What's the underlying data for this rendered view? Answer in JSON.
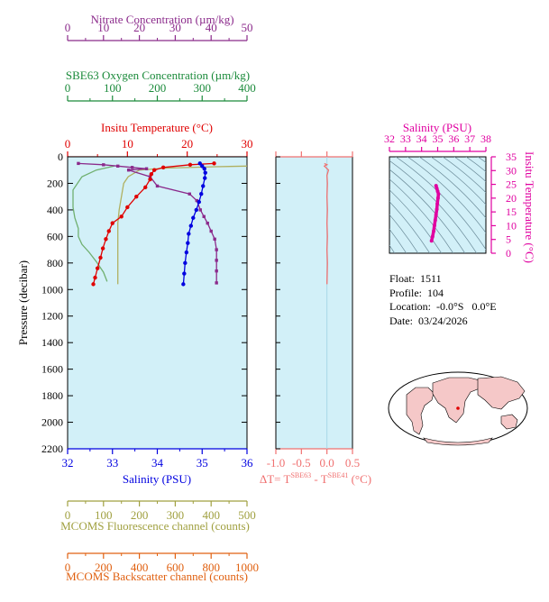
{
  "colors": {
    "bg": "#d2f0f8",
    "temp": "#e00000",
    "sal": "#0000e0",
    "nitrate": "#8b2a8b",
    "oxygen": "#1a8a3a",
    "fluor": "#a0a040",
    "backscatter": "#e06010",
    "dt": "#f07070",
    "ts": "#e000a0"
  },
  "float_info": {
    "float_label": "Float:",
    "float": "1511",
    "profile_label": "Profile:",
    "profile": "104",
    "location_label": "Location:",
    "lat": "-0.0°S",
    "lon": "0.0°E",
    "date_label": "Date:",
    "date": "03/24/2026"
  },
  "chart_data": [
    {
      "type": "line",
      "name": "main-profile",
      "ylabel": "Pressure (decibar)",
      "ylim": [
        2200,
        0
      ],
      "yticks": [
        0,
        200,
        400,
        600,
        800,
        1000,
        1200,
        1400,
        1600,
        1800,
        2000,
        2200
      ],
      "grid": false,
      "axes": {
        "nitrate": {
          "title": "Nitrate Concentration (µm/kg)",
          "range": [
            0,
            50
          ],
          "ticks": [
            0,
            10,
            20,
            30,
            40,
            50
          ]
        },
        "oxygen": {
          "title": "SBE63 Oxygen Concentration (µm/kg)",
          "range": [
            0,
            400
          ],
          "ticks": [
            0,
            100,
            200,
            300,
            400
          ]
        },
        "temperature": {
          "title": "Insitu Temperature (°C)",
          "range": [
            0,
            30
          ],
          "ticks": [
            0,
            10,
            20,
            30
          ]
        },
        "salinity": {
          "title": "Salinity (PSU)",
          "range": [
            32,
            36
          ],
          "ticks": [
            32,
            33,
            34,
            35,
            36
          ]
        },
        "fluorescence": {
          "title": "MCOMS Fluorescence channel (counts)",
          "range": [
            0,
            500
          ],
          "ticks": [
            0,
            100,
            200,
            300,
            400,
            500
          ]
        },
        "backscatter": {
          "title": "MCOMS Backscatter channel (counts)",
          "range": [
            0,
            1000
          ],
          "ticks": [
            0,
            200,
            400,
            600,
            800,
            1000
          ]
        }
      },
      "series": {
        "temperature": {
          "points": [
            [
              24.5,
              50
            ],
            [
              20.5,
              60
            ],
            [
              16,
              80
            ],
            [
              14.5,
              100
            ],
            [
              14,
              130
            ],
            [
              13.8,
              170
            ],
            [
              13,
              230
            ],
            [
              11.5,
              300
            ],
            [
              10,
              380
            ],
            [
              9,
              450
            ],
            [
              7.5,
              500
            ],
            [
              6.9,
              560
            ],
            [
              6.4,
              620
            ],
            [
              5.9,
              690
            ],
            [
              5.5,
              760
            ],
            [
              5,
              840
            ],
            [
              4.6,
              910
            ],
            [
              4.3,
              960
            ]
          ]
        },
        "salinity": {
          "points": [
            [
              34.95,
              50
            ],
            [
              35.0,
              70
            ],
            [
              35.05,
              90
            ],
            [
              35.07,
              120
            ],
            [
              35.06,
              160
            ],
            [
              35.02,
              220
            ],
            [
              34.98,
              280
            ],
            [
              34.93,
              340
            ],
            [
              34.87,
              400
            ],
            [
              34.8,
              460
            ],
            [
              34.75,
              520
            ],
            [
              34.7,
              580
            ],
            [
              34.68,
              650
            ],
            [
              34.65,
              720
            ],
            [
              34.62,
              800
            ],
            [
              34.6,
              880
            ],
            [
              34.58,
              960
            ]
          ]
        },
        "nitrate": {
          "points": [
            [
              3,
              50
            ],
            [
              10,
              60
            ],
            [
              14,
              70
            ],
            [
              18,
              80
            ],
            [
              22,
              90
            ],
            [
              17,
              100
            ],
            [
              23,
              150
            ],
            [
              25,
              220
            ],
            [
              34,
              280
            ],
            [
              36,
              330
            ],
            [
              37,
              400
            ],
            [
              38,
              450
            ],
            [
              39,
              500
            ],
            [
              40,
              560
            ],
            [
              41,
              620
            ],
            [
              41.5,
              700
            ],
            [
              41.5,
              780
            ],
            [
              41.5,
              860
            ],
            [
              41.5,
              950
            ]
          ]
        },
        "oxygen": {
          "points": [
            [
              400,
              70
            ],
            [
              330,
              75
            ],
            [
              220,
              85
            ],
            [
              160,
              100
            ],
            [
              135,
              150
            ],
            [
              125,
              200
            ],
            [
              120,
              300
            ],
            [
              115,
              400
            ],
            [
              112,
              500
            ],
            [
              112,
              600
            ],
            [
              112,
              700
            ],
            [
              112,
              800
            ],
            [
              112,
              900
            ],
            [
              112,
              960
            ]
          ]
        },
        "fluorescence": {
          "points": [
            [
              130,
              70
            ],
            [
              80,
              100
            ],
            [
              40,
              150
            ],
            [
              15,
              250
            ],
            [
              15,
              380
            ],
            [
              20,
              460
            ],
            [
              30,
              540
            ],
            [
              30,
              600
            ],
            [
              40,
              660
            ],
            [
              60,
              720
            ],
            [
              80,
              790
            ],
            [
              100,
              870
            ],
            [
              110,
              940
            ]
          ]
        }
      }
    },
    {
      "type": "line",
      "name": "delta-t",
      "xlabel": "ΔT= T",
      "xlabel_sup1": "SBE63",
      "xlabel_mid": " - T",
      "xlabel_sup2": "SBE41",
      "xlabel_tail": " (°C)",
      "xlim": [
        -1.0,
        0.5
      ],
      "xticks": [
        "-1.0",
        "-0.5",
        "0.0",
        "0.5"
      ],
      "ylim": [
        2200,
        0
      ],
      "series": [
        {
          "points": [
            [
              -0.05,
              50
            ],
            [
              0.0,
              60
            ],
            [
              -0.05,
              70
            ],
            [
              0.03,
              100
            ],
            [
              0.0,
              140
            ],
            [
              0.01,
              200
            ],
            [
              0.0,
              300
            ],
            [
              0.01,
              400
            ],
            [
              0.0,
              500
            ],
            [
              0.01,
              600
            ],
            [
              0.0,
              700
            ],
            [
              0.01,
              800
            ],
            [
              0.0,
              960
            ]
          ]
        }
      ]
    },
    {
      "type": "line",
      "name": "ts-diagram",
      "xlabel": "Salinity (PSU)",
      "ylabel": "Insitu Temperature (°C)",
      "xlim": [
        32,
        38
      ],
      "xticks": [
        32,
        33,
        34,
        35,
        36,
        37,
        38
      ],
      "ylim": [
        0,
        35
      ],
      "yticks": [
        0,
        5,
        10,
        15,
        20,
        25,
        30,
        35
      ],
      "series": [
        {
          "points": [
            [
              34.62,
              4.5
            ],
            [
              34.68,
              6
            ],
            [
              34.75,
              8
            ],
            [
              34.8,
              10
            ],
            [
              34.85,
              12
            ],
            [
              34.9,
              14
            ],
            [
              34.95,
              16
            ],
            [
              34.98,
              18
            ],
            [
              35.02,
              20
            ],
            [
              35.05,
              21.5
            ],
            [
              35.0,
              22.5
            ],
            [
              34.95,
              23.5
            ],
            [
              34.9,
              24.5
            ]
          ]
        }
      ]
    }
  ]
}
